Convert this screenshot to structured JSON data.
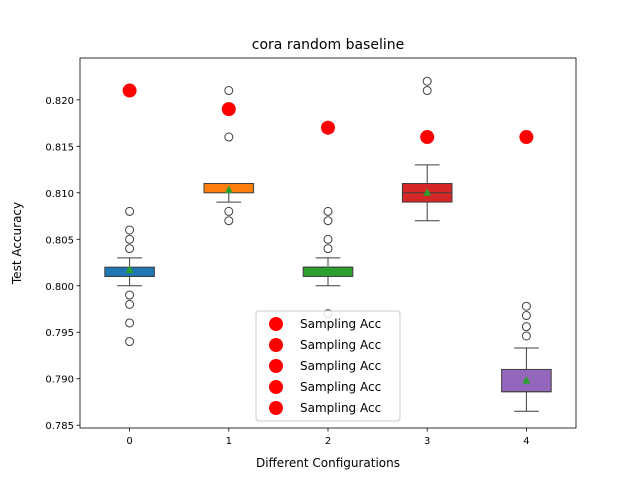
{
  "chart_data": {
    "type": "box",
    "title": "cora random baseline",
    "xlabel": "Different Configurations",
    "ylabel": "Test Accuracy",
    "categories": [
      "0",
      "1",
      "2",
      "3",
      "4"
    ],
    "ylim": [
      0.7847,
      0.8245
    ],
    "yticks": [
      "0.785",
      "0.790",
      "0.795",
      "0.800",
      "0.805",
      "0.810",
      "0.815",
      "0.820"
    ],
    "boxes": [
      {
        "category": "0",
        "color": "#1f77b4",
        "q1": 0.801,
        "median": 0.801,
        "q3": 0.802,
        "whisker_low": 0.8,
        "whisker_high": 0.803,
        "mean": 0.8017,
        "outliers": [
          0.794,
          0.796,
          0.798,
          0.799,
          0.804,
          0.805,
          0.806,
          0.808
        ]
      },
      {
        "category": "1",
        "color": "#ff7f0e",
        "q1": 0.81,
        "median": 0.811,
        "q3": 0.811,
        "whisker_low": 0.809,
        "whisker_high": 0.811,
        "mean": 0.8103,
        "outliers": [
          0.807,
          0.808,
          0.816,
          0.821
        ]
      },
      {
        "category": "2",
        "color": "#2ca02c",
        "q1": 0.801,
        "median": 0.802,
        "q3": 0.802,
        "whisker_low": 0.8,
        "whisker_high": 0.803,
        "mean": 0.8017,
        "outliers": [
          0.797,
          0.804,
          0.805,
          0.807,
          0.808
        ]
      },
      {
        "category": "3",
        "color": "#d62728",
        "q1": 0.809,
        "median": 0.81,
        "q3": 0.811,
        "whisker_low": 0.807,
        "whisker_high": 0.813,
        "mean": 0.81,
        "outliers": [
          0.821,
          0.822
        ]
      },
      {
        "category": "4",
        "color": "#9467bd",
        "q1": 0.7886,
        "median": 0.7886,
        "q3": 0.791,
        "whisker_low": 0.7865,
        "whisker_high": 0.7933,
        "mean": 0.7898,
        "outliers": [
          0.7946,
          0.7956,
          0.7968,
          0.7978
        ]
      }
    ],
    "sampling_acc": {
      "name": "Sampling Acc",
      "color": "#ff0000",
      "x": [
        "0",
        "1",
        "2",
        "3",
        "4"
      ],
      "y": [
        0.821,
        0.819,
        0.817,
        0.816,
        0.816
      ]
    },
    "legend": {
      "entries": [
        "Sampling Acc",
        "Sampling Acc",
        "Sampling Acc",
        "Sampling Acc",
        "Sampling Acc"
      ],
      "placement": "lower-center"
    },
    "mean_marker_color": "#2ca02c",
    "grid": false
  }
}
